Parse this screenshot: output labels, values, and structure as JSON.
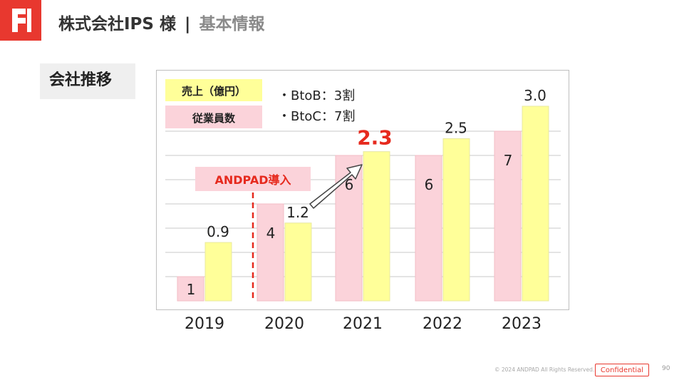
{
  "header": {
    "company": "株式会社IPS 様",
    "separator": "|",
    "page_title": "基本情報"
  },
  "section": {
    "label": "会社推移"
  },
  "chart_data": {
    "type": "bar",
    "categories": [
      "2019",
      "2020",
      "2021",
      "2022",
      "2023"
    ],
    "series": [
      {
        "name": "従業員数",
        "values": [
          1,
          4,
          6,
          6,
          7
        ],
        "color": "#fbd3da"
      },
      {
        "name": "売上（億円）",
        "values": [
          0.9,
          1.2,
          2.3,
          2.5,
          3.0
        ],
        "color": "#ffff99"
      }
    ],
    "value_labels": {
      "employees": [
        "1",
        "4",
        "6",
        "6",
        "7"
      ],
      "sales": [
        "0.9",
        "1.2",
        "2.3",
        "2.5",
        "3.0"
      ]
    },
    "highlight": {
      "category": "2021",
      "label": "2.3",
      "color": "#e62a1e"
    },
    "legend": {
      "position": "top-left"
    },
    "notes": [
      "・BtoB：3割",
      "・BtoC：7割"
    ],
    "annotation": {
      "text": "ANDPAD導入",
      "between": [
        "2019",
        "2020"
      ]
    },
    "grid": true
  },
  "footer": {
    "copyright": "© 2024 ANDPAD All Rights Reserved.",
    "confidential": "Confidential",
    "page_number": "90"
  }
}
